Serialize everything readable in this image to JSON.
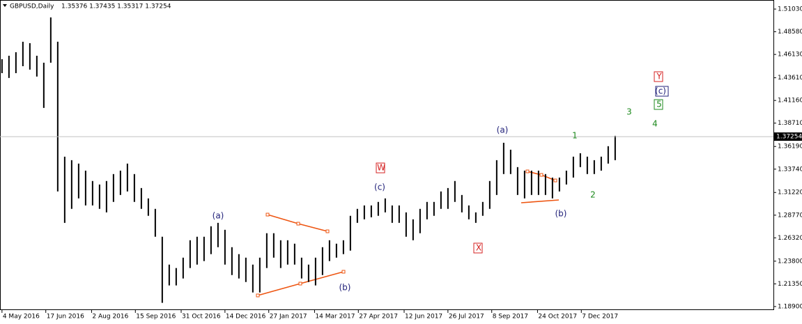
{
  "chart_data": {
    "type": "ohlc",
    "title": "GBPUSD,Daily",
    "subtitle": "1.35376 1.37435 1.35317 1.37254",
    "current_price": {
      "value": 1.37254,
      "label": "1.37254"
    },
    "color": "#000000",
    "grid": false,
    "x": [
      "2016-05-04",
      "2016-05-11",
      "2016-05-18",
      "2016-05-25",
      "2016-06-01",
      "2016-06-08",
      "2016-06-15",
      "2016-06-22",
      "2016-06-29",
      "2016-07-06",
      "2016-07-13",
      "2016-07-20",
      "2016-07-27",
      "2016-08-03",
      "2016-08-10",
      "2016-08-17",
      "2016-08-24",
      "2016-08-31",
      "2016-09-07",
      "2016-09-14",
      "2016-09-21",
      "2016-09-28",
      "2016-10-05",
      "2016-10-12",
      "2016-10-19",
      "2016-10-26",
      "2016-11-02",
      "2016-11-09",
      "2016-11-16",
      "2016-11-23",
      "2016-11-30",
      "2016-12-07",
      "2016-12-14",
      "2016-12-21",
      "2016-12-28",
      "2017-01-04",
      "2017-01-11",
      "2017-01-18",
      "2017-01-25",
      "2017-02-01",
      "2017-02-08",
      "2017-02-15",
      "2017-02-22",
      "2017-03-01",
      "2017-03-08",
      "2017-03-15",
      "2017-03-22",
      "2017-03-29",
      "2017-04-05",
      "2017-04-12",
      "2017-04-19",
      "2017-04-26",
      "2017-05-03",
      "2017-05-10",
      "2017-05-17",
      "2017-05-24",
      "2017-05-31",
      "2017-06-07",
      "2017-06-14",
      "2017-06-21",
      "2017-06-28",
      "2017-07-05",
      "2017-07-12",
      "2017-07-19",
      "2017-07-26",
      "2017-08-02",
      "2017-08-09",
      "2017-08-16",
      "2017-08-23",
      "2017-08-30",
      "2017-09-06",
      "2017-09-13",
      "2017-09-20",
      "2017-09-27",
      "2017-10-04",
      "2017-10-11",
      "2017-10-18",
      "2017-10-25",
      "2017-11-01",
      "2017-11-08",
      "2017-11-15",
      "2017-11-22",
      "2017-11-29",
      "2017-12-06",
      "2017-12-13",
      "2017-12-20",
      "2017-12-27",
      "2018-01-03",
      "2018-01-10"
    ],
    "high": [
      1.4562,
      1.4599,
      1.4637,
      1.475,
      1.4735,
      1.4599,
      1.4524,
      1.5013,
      1.475,
      1.3509,
      1.3471,
      1.3434,
      1.3358,
      1.3246,
      1.3208,
      1.3246,
      1.3321,
      1.3358,
      1.3434,
      1.3321,
      1.317,
      1.3058,
      1.2945,
      1.2644,
      1.2343,
      1.2306,
      1.2418,
      1.2606,
      1.2644,
      1.2644,
      1.2757,
      1.2794,
      1.2719,
      1.2531,
      1.2456,
      1.2418,
      1.2343,
      1.2418,
      1.2682,
      1.2682,
      1.2606,
      1.2606,
      1.2569,
      1.2418,
      1.2343,
      1.2418,
      1.2531,
      1.2606,
      1.2569,
      1.2606,
      1.287,
      1.2945,
      1.2982,
      1.2982,
      1.302,
      1.3058,
      1.2982,
      1.2982,
      1.2907,
      1.2832,
      1.2945,
      1.302,
      1.302,
      1.3133,
      1.317,
      1.3246,
      1.3095,
      1.2982,
      1.2907,
      1.302,
      1.3246,
      1.3471,
      1.3659,
      1.3584,
      1.3396,
      1.3358,
      1.3358,
      1.3358,
      1.3321,
      1.3283,
      1.3283,
      1.3358,
      1.3509,
      1.3546,
      1.3509,
      1.3471,
      1.3509,
      1.3622,
      1.3734
    ],
    "low": [
      1.4411,
      1.4359,
      1.4411,
      1.4486,
      1.4449,
      1.4374,
      1.4035,
      1.4524,
      1.3133,
      1.2794,
      1.2945,
      1.3058,
      1.2982,
      1.2982,
      1.2945,
      1.2907,
      1.302,
      1.3095,
      1.3133,
      1.302,
      1.2945,
      1.287,
      1.2644,
      1.193,
      1.2118,
      1.2118,
      1.2193,
      1.2306,
      1.2343,
      1.2381,
      1.2456,
      1.2531,
      1.2343,
      1.223,
      1.2193,
      1.2155,
      1.2042,
      1.2042,
      1.2306,
      1.2418,
      1.2306,
      1.2343,
      1.2343,
      1.2193,
      1.2155,
      1.2118,
      1.223,
      1.2381,
      1.2418,
      1.2456,
      1.2494,
      1.2794,
      1.2832,
      1.2854,
      1.287,
      1.2907,
      1.2794,
      1.2794,
      1.2644,
      1.2606,
      1.2682,
      1.2832,
      1.287,
      1.2945,
      1.2945,
      1.302,
      1.2907,
      1.2832,
      1.2794,
      1.287,
      1.2945,
      1.3095,
      1.3321,
      1.3321,
      1.3095,
      1.3058,
      1.3095,
      1.3095,
      1.3095,
      1.3058,
      1.3133,
      1.3208,
      1.3283,
      1.3396,
      1.3321,
      1.3321,
      1.3358,
      1.3434,
      1.3471
    ],
    "xlim": [
      "2016-05-02",
      "2018-06-18"
    ],
    "xticks": [
      {
        "value": "2016-05-04",
        "label": "4 May 2016"
      },
      {
        "value": "2016-06-17",
        "label": "17 Jun 2016"
      },
      {
        "value": "2016-08-02",
        "label": "2 Aug 2016"
      },
      {
        "value": "2016-09-15",
        "label": "15 Sep 2016"
      },
      {
        "value": "2016-10-31",
        "label": "31 Oct 2016"
      },
      {
        "value": "2016-12-14",
        "label": "14 Dec 2016"
      },
      {
        "value": "2017-01-27",
        "label": "27 Jan 2017"
      },
      {
        "value": "2017-03-14",
        "label": "14 Mar 2017"
      },
      {
        "value": "2017-04-27",
        "label": "27 Apr 2017"
      },
      {
        "value": "2017-06-12",
        "label": "12 Jun 2017"
      },
      {
        "value": "2017-07-26",
        "label": "26 Jul 2017"
      },
      {
        "value": "2017-09-08",
        "label": "8 Sep 2017"
      },
      {
        "value": "2017-10-24",
        "label": "24 Oct 2017"
      },
      {
        "value": "2017-12-07",
        "label": "7 Dec 2017"
      }
    ],
    "ylim": [
      1.1852,
      1.5201
    ],
    "yticks": [
      {
        "value": 1.5103,
        "label": "1.51030"
      },
      {
        "value": 1.4858,
        "label": "1.48580"
      },
      {
        "value": 1.4613,
        "label": "1.46130"
      },
      {
        "value": 1.4361,
        "label": "1.43610"
      },
      {
        "value": 1.4116,
        "label": "1.41160"
      },
      {
        "value": 1.3871,
        "label": "1.38710"
      },
      {
        "value": 1.3619,
        "label": "1.36190"
      },
      {
        "value": 1.3374,
        "label": "1.33740"
      },
      {
        "value": 1.3122,
        "label": "1.31220"
      },
      {
        "value": 1.2877,
        "label": "1.28770"
      },
      {
        "value": 1.2632,
        "label": "1.26320"
      },
      {
        "value": 1.238,
        "label": "1.23800"
      },
      {
        "value": 1.2135,
        "label": "1.21350"
      },
      {
        "value": 1.189,
        "label": "1.18900"
      }
    ],
    "annotations": [
      {
        "text": "(a)",
        "color": "#22227a",
        "boxed": false
      },
      {
        "text": "(b)",
        "color": "#22227a",
        "boxed": false
      },
      {
        "text": "(c)",
        "color": "#22227a",
        "boxed": false
      },
      {
        "text": "(a)",
        "color": "#22227a",
        "boxed": false
      },
      {
        "text": "(b)",
        "color": "#22227a",
        "boxed": false
      },
      {
        "text": "W",
        "color": "#d42020",
        "boxed": true
      },
      {
        "text": "X",
        "color": "#d42020",
        "boxed": true
      },
      {
        "text": "Y",
        "color": "#d42020",
        "boxed": true
      },
      {
        "text": "(c)",
        "color": "#22227a",
        "boxed": true
      },
      {
        "text": "5",
        "color": "#1e8a1e",
        "boxed": true
      },
      {
        "text": "1",
        "color": "#1e8a1e",
        "boxed": false
      },
      {
        "text": "2",
        "color": "#1e8a1e",
        "boxed": false
      },
      {
        "text": "3",
        "color": "#1e8a1e",
        "boxed": false
      },
      {
        "text": "4",
        "color": "#1e8a1e",
        "boxed": false
      }
    ]
  }
}
